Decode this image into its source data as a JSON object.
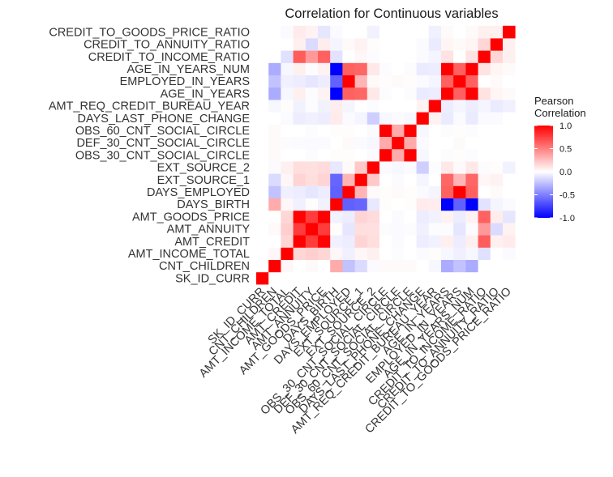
{
  "chart_data": {
    "type": "heatmap",
    "title": "Correlation for Continuous variables",
    "xlabel": "",
    "ylabel": "",
    "variables": [
      "SK_ID_CURR",
      "CNT_CHILDREN",
      "AMT_INCOME_TOTAL",
      "AMT_CREDIT",
      "AMT_ANNUITY",
      "AMT_GOODS_PRICE",
      "DAYS_BIRTH",
      "DAYS_EMPLOYED",
      "EXT_SOURCE_1",
      "EXT_SOURCE_2",
      "OBS_30_CNT_SOCIAL_CIRCLE",
      "DEF_30_CNT_SOCIAL_CIRCLE",
      "OBS_60_CNT_SOCIAL_CIRCLE",
      "DAYS_LAST_PHONE_CHANGE",
      "AMT_REQ_CREDIT_BUREAU_YEAR",
      "AGE_IN_YEARS",
      "EMPLOYED_IN_YEARS",
      "AGE_IN_YEARS_NUM",
      "CREDIT_TO_INCOME_RATIO",
      "CREDIT_TO_ANNUITY_RATIO",
      "CREDIT_TO_GOODS_PRICE_RATIO"
    ],
    "matrix": [
      [
        1.0,
        0.0,
        0.0,
        0.0,
        0.0,
        0.0,
        0.0,
        0.0,
        0.0,
        0.0,
        0.0,
        0.0,
        0.0,
        0.0,
        0.0,
        0.0,
        0.0,
        0.0,
        0.0,
        0.0,
        0.0
      ],
      [
        0.0,
        1.0,
        0.03,
        0.0,
        0.02,
        0.0,
        0.33,
        -0.24,
        -0.14,
        -0.02,
        0.02,
        0.02,
        0.02,
        0.0,
        -0.03,
        -0.33,
        -0.24,
        -0.33,
        0.0,
        0.0,
        0.0
      ],
      [
        0.0,
        0.03,
        1.0,
        0.16,
        0.19,
        0.16,
        0.03,
        -0.06,
        0.03,
        0.06,
        0.0,
        -0.01,
        0.0,
        -0.02,
        0.01,
        -0.03,
        -0.06,
        -0.03,
        -0.12,
        0.0,
        -0.02
      ],
      [
        0.0,
        0.0,
        0.16,
        1.0,
        0.77,
        0.99,
        -0.06,
        -0.07,
        0.17,
        0.13,
        0.0,
        -0.02,
        0.0,
        -0.07,
        -0.05,
        0.06,
        -0.07,
        0.06,
        0.64,
        0.06,
        0.08
      ],
      [
        0.0,
        0.02,
        0.19,
        0.77,
        1.0,
        0.77,
        0.01,
        -0.1,
        0.13,
        0.12,
        -0.01,
        -0.02,
        -0.01,
        -0.06,
        -0.01,
        -0.01,
        -0.1,
        -0.01,
        0.4,
        -0.14,
        0.05
      ],
      [
        0.0,
        0.0,
        0.16,
        0.99,
        0.77,
        1.0,
        -0.05,
        -0.07,
        0.17,
        0.14,
        0.0,
        -0.02,
        0.0,
        -0.07,
        -0.05,
        0.05,
        -0.07,
        0.05,
        0.62,
        0.07,
        -0.1
      ],
      [
        0.0,
        0.33,
        0.03,
        -0.06,
        0.01,
        -0.05,
        1.0,
        -0.62,
        -0.6,
        -0.09,
        0.01,
        0.0,
        0.01,
        0.08,
        0.07,
        -1.0,
        -0.62,
        -1.0,
        -0.11,
        -0.04,
        -0.02
      ],
      [
        0.0,
        -0.24,
        -0.06,
        -0.07,
        -0.1,
        -0.07,
        -0.62,
        1.0,
        0.29,
        0.02,
        0.01,
        0.02,
        0.01,
        -0.02,
        -0.04,
        0.62,
        1.0,
        0.62,
        0.0,
        0.02,
        0.0
      ],
      [
        0.0,
        -0.14,
        0.03,
        0.17,
        0.13,
        0.17,
        -0.6,
        0.29,
        1.0,
        0.21,
        0.0,
        -0.02,
        0.0,
        -0.04,
        0.0,
        0.6,
        0.29,
        0.6,
        0.03,
        0.05,
        0.0
      ],
      [
        0.0,
        -0.02,
        0.06,
        0.13,
        0.12,
        0.14,
        -0.09,
        0.02,
        0.21,
        1.0,
        -0.02,
        -0.03,
        -0.02,
        -0.19,
        -0.01,
        0.09,
        0.02,
        0.09,
        -0.01,
        0.01,
        -0.05
      ],
      [
        0.0,
        0.02,
        0.0,
        0.0,
        -0.01,
        0.0,
        0.01,
        0.01,
        0.0,
        -0.02,
        1.0,
        0.33,
        1.0,
        -0.03,
        0.0,
        -0.01,
        0.01,
        -0.01,
        0.0,
        0.0,
        0.0
      ],
      [
        0.0,
        0.02,
        -0.01,
        -0.02,
        -0.02,
        -0.02,
        0.0,
        0.02,
        -0.02,
        -0.03,
        0.33,
        1.0,
        0.33,
        -0.02,
        0.0,
        0.0,
        0.02,
        0.0,
        0.0,
        0.0,
        0.0
      ],
      [
        0.0,
        0.02,
        0.0,
        0.0,
        -0.01,
        0.0,
        0.01,
        0.01,
        0.0,
        -0.02,
        1.0,
        0.33,
        1.0,
        -0.03,
        0.0,
        -0.01,
        0.01,
        -0.01,
        0.0,
        0.0,
        0.0
      ],
      [
        0.0,
        0.0,
        -0.02,
        -0.07,
        -0.06,
        -0.07,
        0.08,
        -0.02,
        -0.04,
        -0.19,
        -0.03,
        -0.02,
        -0.03,
        1.0,
        0.05,
        -0.08,
        -0.02,
        -0.08,
        -0.02,
        -0.02,
        0.0
      ],
      [
        0.0,
        -0.03,
        0.01,
        -0.05,
        -0.01,
        -0.05,
        0.07,
        -0.04,
        0.0,
        -0.01,
        0.0,
        0.0,
        0.0,
        0.05,
        1.0,
        -0.07,
        -0.04,
        -0.07,
        -0.04,
        -0.08,
        -0.06
      ],
      [
        0.0,
        -0.33,
        -0.03,
        0.06,
        -0.01,
        0.05,
        -1.0,
        0.62,
        0.6,
        0.09,
        -0.01,
        0.0,
        -0.01,
        -0.08,
        -0.07,
        1.0,
        0.62,
        1.0,
        0.11,
        0.04,
        0.02
      ],
      [
        0.0,
        -0.24,
        -0.06,
        -0.07,
        -0.1,
        -0.07,
        -0.62,
        1.0,
        0.29,
        0.02,
        0.01,
        0.02,
        0.01,
        -0.02,
        -0.04,
        0.62,
        1.0,
        0.62,
        0.0,
        0.02,
        0.0
      ],
      [
        0.0,
        -0.33,
        -0.03,
        0.06,
        -0.01,
        0.05,
        -1.0,
        0.62,
        0.6,
        0.09,
        -0.01,
        0.0,
        -0.01,
        -0.08,
        -0.07,
        1.0,
        0.62,
        1.0,
        0.11,
        0.04,
        0.02
      ],
      [
        0.0,
        0.0,
        -0.12,
        0.64,
        0.4,
        0.62,
        -0.11,
        0.0,
        0.03,
        -0.01,
        0.0,
        0.0,
        0.0,
        -0.02,
        -0.04,
        0.11,
        0.0,
        0.11,
        1.0,
        0.16,
        0.06
      ],
      [
        0.0,
        0.0,
        0.0,
        0.06,
        -0.14,
        0.07,
        -0.04,
        0.02,
        0.05,
        0.01,
        0.0,
        0.0,
        0.0,
        -0.02,
        -0.08,
        0.04,
        0.02,
        0.04,
        0.16,
        1.0,
        0.06
      ],
      [
        0.0,
        0.0,
        -0.02,
        0.08,
        0.05,
        -0.1,
        -0.02,
        0.0,
        0.0,
        -0.05,
        0.0,
        0.0,
        0.0,
        0.0,
        -0.06,
        0.02,
        0.0,
        0.02,
        0.06,
        0.06,
        1.0
      ]
    ],
    "value_range": [
      -1.0,
      1.0
    ],
    "colors": {
      "low": "#0000ff",
      "mid": "#ffffff",
      "high": "#ff0000"
    },
    "legend": {
      "title_lines": [
        "Pearson",
        "Correlation"
      ],
      "ticks": [
        1.0,
        0.5,
        0.0,
        -0.5,
        -1.0
      ],
      "tick_labels": [
        "1.0",
        "0.5",
        "0.0",
        "-0.5",
        "-1.0"
      ],
      "placement": "right"
    }
  }
}
